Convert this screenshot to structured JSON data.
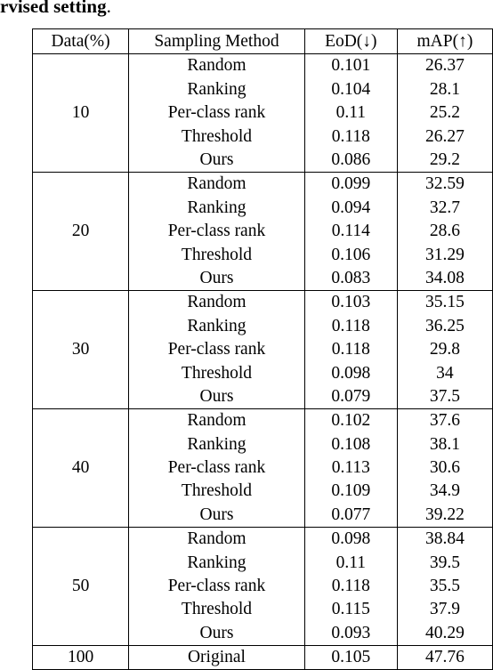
{
  "caption_fragment": "rvised setting",
  "caption_period": ".",
  "table": {
    "headers": {
      "data": "Data(%)",
      "method": "Sampling Method",
      "eod": "EoD(↓)",
      "map": "mAP(↑)"
    },
    "groups": [
      {
        "data": "10",
        "rows": [
          {
            "method": "Random",
            "eod": "0.101",
            "map": "26.37"
          },
          {
            "method": "Ranking",
            "eod": "0.104",
            "map": "28.1"
          },
          {
            "method": "Per-class rank",
            "eod": "0.11",
            "map": "25.2"
          },
          {
            "method": "Threshold",
            "eod": "0.118",
            "map": "26.27"
          },
          {
            "method": "Ours",
            "eod": "0.086",
            "map": "29.2",
            "bold": true
          }
        ]
      },
      {
        "data": "20",
        "rows": [
          {
            "method": "Random",
            "eod": "0.099",
            "map": "32.59"
          },
          {
            "method": "Ranking",
            "eod": "0.094",
            "map": "32.7"
          },
          {
            "method": "Per-class rank",
            "eod": "0.114",
            "map": "28.6"
          },
          {
            "method": "Threshold",
            "eod": "0.106",
            "map": "31.29"
          },
          {
            "method": "Ours",
            "eod": "0.083",
            "map": "34.08",
            "bold": true
          }
        ]
      },
      {
        "data": "30",
        "rows": [
          {
            "method": "Random",
            "eod": "0.103",
            "map": "35.15"
          },
          {
            "method": "Ranking",
            "eod": "0.118",
            "map": "36.25"
          },
          {
            "method": "Per-class rank",
            "eod": "0.118",
            "map": "29.8"
          },
          {
            "method": "Threshold",
            "eod": "0.098",
            "map": "34"
          },
          {
            "method": "Ours",
            "eod": "0.079",
            "map": "37.5",
            "bold": true
          }
        ]
      },
      {
        "data": "40",
        "rows": [
          {
            "method": "Random",
            "eod": "0.102",
            "map": "37.6"
          },
          {
            "method": "Ranking",
            "eod": "0.108",
            "map": "38.1"
          },
          {
            "method": "Per-class rank",
            "eod": "0.113",
            "map": "30.6"
          },
          {
            "method": "Threshold",
            "eod": "0.109",
            "map": "34.9"
          },
          {
            "method": "Ours",
            "eod": "0.077",
            "map": "39.22",
            "bold": true
          }
        ]
      },
      {
        "data": "50",
        "rows": [
          {
            "method": "Random",
            "eod": "0.098",
            "map": "38.84"
          },
          {
            "method": "Ranking",
            "eod": "0.11",
            "map": "39.5"
          },
          {
            "method": "Per-class rank",
            "eod": "0.118",
            "map": "35.5"
          },
          {
            "method": "Threshold",
            "eod": "0.115",
            "map": "37.9"
          },
          {
            "method": "Ours",
            "eod": "0.093",
            "map": "40.29",
            "bold": true
          }
        ]
      },
      {
        "data": "100",
        "rows": [
          {
            "method": "Original",
            "eod": "0.105",
            "map": "47.76"
          }
        ]
      }
    ]
  }
}
